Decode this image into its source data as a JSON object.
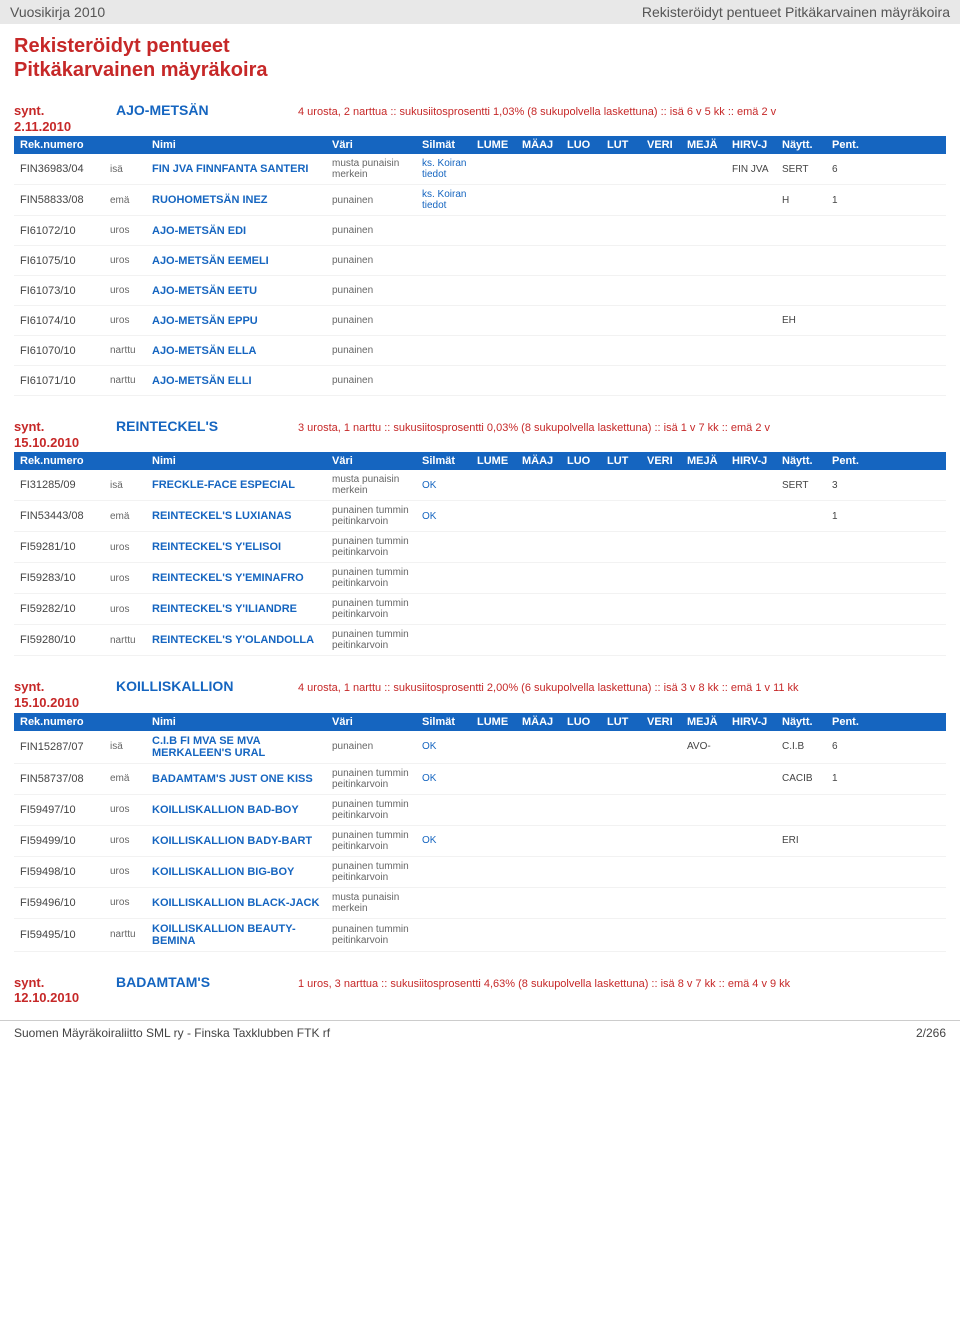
{
  "header": {
    "left": "Vuosikirja 2010",
    "right": "Rekisteröidyt pentueet Pitkäkarvainen mäyräkoira"
  },
  "title_line1": "Rekisteröidyt pentueet",
  "title_line2": "Pitkäkarvainen mäyräkoira",
  "col_headers": {
    "reg": "Rek.numero",
    "nimi": "Nimi",
    "vari": "Väri",
    "silmat": "Silmät",
    "lume": "LUME",
    "maaj": "MÄAJ",
    "luo": "LUO",
    "lut": "LUT",
    "veri": "VERI",
    "meja": "MEJÄ",
    "hirvj": "HIRV-J",
    "naytt": "Näytt.",
    "pent": "Pent."
  },
  "sections": [
    {
      "synt": "synt.\n2.11.2010",
      "kennel": "AJO-METSÄN",
      "info": "4 urosta, 2 narttua  ::  sukusiitosprosentti 1,03% (8 sukupolvella laskettuna)  ::  isä 6 v 5 kk  ::  emä 2 v",
      "rows": [
        {
          "reg": "FIN36983/04",
          "role": "isä",
          "name": "FIN JVA FINNFANTA SANTERI",
          "color": "musta punaisin merkein",
          "silm": "ks. Koiran tiedot",
          "hirv": "FIN JVA",
          "naytt": "SERT",
          "pent": "6"
        },
        {
          "reg": "FIN58833/08",
          "role": "emä",
          "name": "RUOHOMETSÄN INEZ",
          "color": "punainen",
          "silm": "ks. Koiran tiedot",
          "naytt": "H",
          "pent": "1"
        },
        {
          "reg": "FI61072/10",
          "role": "uros",
          "name": "AJO-METSÄN EDI",
          "color": "punainen"
        },
        {
          "reg": "FI61075/10",
          "role": "uros",
          "name": "AJO-METSÄN EEMELI",
          "color": "punainen"
        },
        {
          "reg": "FI61073/10",
          "role": "uros",
          "name": "AJO-METSÄN EETU",
          "color": "punainen"
        },
        {
          "reg": "FI61074/10",
          "role": "uros",
          "name": "AJO-METSÄN EPPU",
          "color": "punainen",
          "naytt": "EH"
        },
        {
          "reg": "FI61070/10",
          "role": "narttu",
          "name": "AJO-METSÄN ELLA",
          "color": "punainen"
        },
        {
          "reg": "FI61071/10",
          "role": "narttu",
          "name": "AJO-METSÄN ELLI",
          "color": "punainen"
        }
      ]
    },
    {
      "synt": "synt.\n15.10.2010",
      "kennel": "REINTECKEL'S",
      "info": "3 urosta, 1 narttu  ::  sukusiitosprosentti 0,03% (8 sukupolvella laskettuna)  ::  isä 1 v 7 kk  ::  emä 2 v",
      "rows": [
        {
          "reg": "FI31285/09",
          "role": "isä",
          "name": "FRECKLE-FACE ESPECIAL",
          "color": "musta punaisin merkein",
          "silm": "OK",
          "naytt": "SERT",
          "pent": "3"
        },
        {
          "reg": "FIN53443/08",
          "role": "emä",
          "name": "REINTECKEL'S LUXIANAS",
          "color": "punainen tummin peitinkarvoin",
          "silm": "OK",
          "pent": "1"
        },
        {
          "reg": "FI59281/10",
          "role": "uros",
          "name": "REINTECKEL'S Y'ELISOI",
          "color": "punainen tummin peitinkarvoin"
        },
        {
          "reg": "FI59283/10",
          "role": "uros",
          "name": "REINTECKEL'S Y'EMINAFRO",
          "color": "punainen tummin peitinkarvoin"
        },
        {
          "reg": "FI59282/10",
          "role": "uros",
          "name": "REINTECKEL'S Y'ILIANDRE",
          "color": "punainen tummin peitinkarvoin"
        },
        {
          "reg": "FI59280/10",
          "role": "narttu",
          "name": "REINTECKEL'S Y'OLANDOLLA",
          "color": "punainen tummin peitinkarvoin"
        }
      ]
    },
    {
      "synt": "synt.\n15.10.2010",
      "kennel": "KOILLISKALLION",
      "info": "4 urosta, 1 narttu  ::  sukusiitosprosentti 2,00% (6 sukupolvella laskettuna)  ::  isä 3 v 8 kk  ::  emä 1 v 11 kk",
      "rows": [
        {
          "reg": "FIN15287/07",
          "role": "isä",
          "name": "C.I.B FI MVA SE MVA MERKALEEN'S URAL",
          "color": "punainen",
          "silm": "OK",
          "meja": "AVO-",
          "naytt": "C.I.B",
          "pent": "6"
        },
        {
          "reg": "FIN58737/08",
          "role": "emä",
          "name": "BADAMTAM'S JUST ONE KISS",
          "color": "punainen tummin peitinkarvoin",
          "silm": "OK",
          "naytt": "CACIB",
          "pent": "1"
        },
        {
          "reg": "FI59497/10",
          "role": "uros",
          "name": "KOILLISKALLION BAD-BOY",
          "color": "punainen tummin peitinkarvoin"
        },
        {
          "reg": "FI59499/10",
          "role": "uros",
          "name": "KOILLISKALLION BADY-BART",
          "color": "punainen tummin peitinkarvoin",
          "silm": "OK",
          "naytt": "ERI"
        },
        {
          "reg": "FI59498/10",
          "role": "uros",
          "name": "KOILLISKALLION BIG-BOY",
          "color": "punainen tummin peitinkarvoin"
        },
        {
          "reg": "FI59496/10",
          "role": "uros",
          "name": "KOILLISKALLION BLACK-JACK",
          "color": "musta punaisin merkein"
        },
        {
          "reg": "FI59495/10",
          "role": "narttu",
          "name": "KOILLISKALLION BEAUTY-BEMINA",
          "color": "punainen tummin peitinkarvoin"
        }
      ]
    },
    {
      "synt": "synt.\n12.10.2010",
      "kennel": "BADAMTAM'S",
      "info": "1 uros, 3 narttua  ::  sukusiitosprosentti 4,63% (8 sukupolvella laskettuna)  ::  isä 8 v 7 kk  ::  emä 4 v 9 kk",
      "no_table": true
    }
  ],
  "footer": {
    "left": "Suomen Mäyräkoiraliitto SML ry - Finska Taxklubben FTK rf",
    "right": "2/266"
  },
  "colors": {
    "brand_red": "#c62828",
    "brand_blue": "#1565c0",
    "header_gray": "#e8e8e8",
    "bg": "#ffffff",
    "text": "#333333"
  }
}
